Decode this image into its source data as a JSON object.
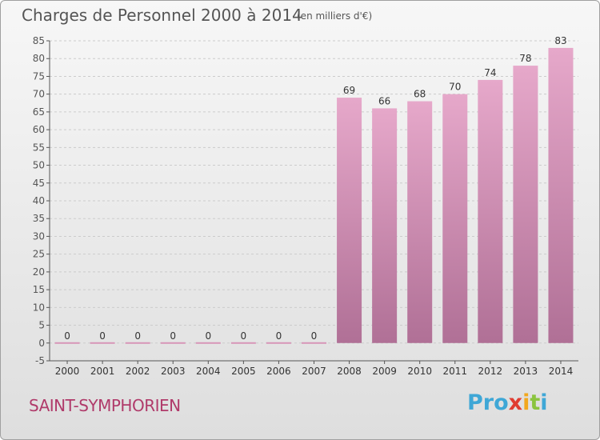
{
  "header": {
    "title": "Charges de Personnel 2000 à 2014",
    "subtitle": "(en milliers d'€)"
  },
  "footer": {
    "location": "SAINT-SYMPHORIEN",
    "logo": {
      "p1": "Pro",
      "p2": "x",
      "p3": "i",
      "p4": "t",
      "p5": "i"
    }
  },
  "colors": {
    "bar_light": "#e6a8ca",
    "bar_dark": "#b07096",
    "axis": "#555555",
    "grid": "#cccccc"
  },
  "chart_data": {
    "type": "bar",
    "title": "Charges de Personnel 2000 à 2014",
    "subtitle": "(en milliers d'€)",
    "categories": [
      "2000",
      "2001",
      "2002",
      "2003",
      "2004",
      "2005",
      "2006",
      "2007",
      "2008",
      "2009",
      "2010",
      "2011",
      "2012",
      "2013",
      "2014"
    ],
    "values": [
      0,
      0,
      0,
      0,
      0,
      0,
      0,
      0,
      69,
      66,
      68,
      70,
      74,
      78,
      83
    ],
    "ylim": [
      -5,
      85
    ],
    "yticks": [
      -5,
      0,
      5,
      10,
      15,
      20,
      25,
      30,
      35,
      40,
      45,
      50,
      55,
      60,
      65,
      70,
      75,
      80,
      85
    ],
    "grid": true,
    "legend": "none"
  }
}
